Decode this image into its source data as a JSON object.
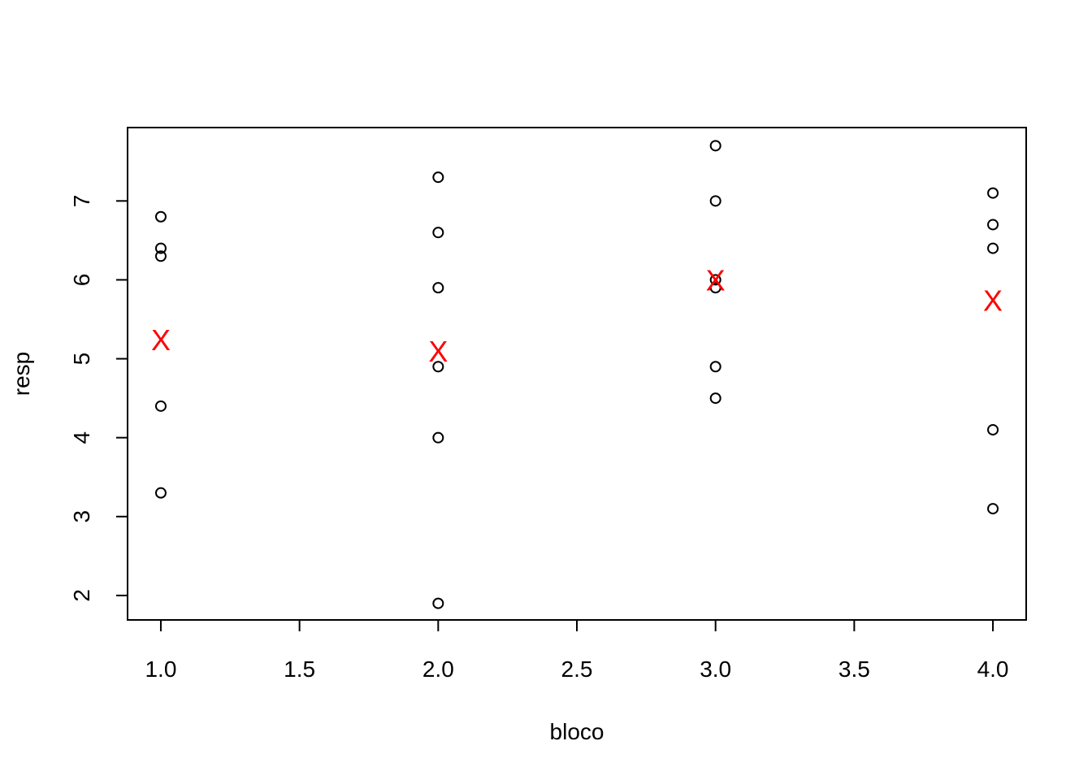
{
  "chart_data": {
    "type": "scatter",
    "xlabel": "bloco",
    "ylabel": "resp",
    "xlim": [
      0.88,
      4.12
    ],
    "ylim": [
      1.69,
      7.93
    ],
    "x_ticks": [
      "1.0",
      "1.5",
      "2.0",
      "2.5",
      "3.0",
      "3.5",
      "4.0"
    ],
    "y_ticks": [
      "2",
      "3",
      "4",
      "5",
      "6",
      "7"
    ],
    "grid": false,
    "legend": "none",
    "series": [
      {
        "marker": "open-circle",
        "color": "#000000",
        "points": [
          {
            "x": 1,
            "y": 6.8
          },
          {
            "x": 1,
            "y": 6.4
          },
          {
            "x": 1,
            "y": 6.3
          },
          {
            "x": 1,
            "y": 4.4
          },
          {
            "x": 1,
            "y": 3.3
          },
          {
            "x": 2,
            "y": 7.3
          },
          {
            "x": 2,
            "y": 6.6
          },
          {
            "x": 2,
            "y": 5.9
          },
          {
            "x": 2,
            "y": 4.9
          },
          {
            "x": 2,
            "y": 4.0
          },
          {
            "x": 2,
            "y": 1.9
          },
          {
            "x": 3,
            "y": 7.7
          },
          {
            "x": 3,
            "y": 7.0
          },
          {
            "x": 3,
            "y": 6.0
          },
          {
            "x": 3,
            "y": 5.9
          },
          {
            "x": 3,
            "y": 4.9
          },
          {
            "x": 3,
            "y": 4.5
          },
          {
            "x": 4,
            "y": 7.1
          },
          {
            "x": 4,
            "y": 6.7
          },
          {
            "x": 4,
            "y": 6.4
          },
          {
            "x": 4,
            "y": 4.1
          },
          {
            "x": 4,
            "y": 3.1
          }
        ]
      },
      {
        "marker": "X",
        "color": "#ff0000",
        "points": [
          {
            "x": 1,
            "y": 5.24
          },
          {
            "x": 2,
            "y": 5.1
          },
          {
            "x": 3,
            "y": 6.0
          },
          {
            "x": 4,
            "y": 5.74
          }
        ]
      }
    ]
  }
}
